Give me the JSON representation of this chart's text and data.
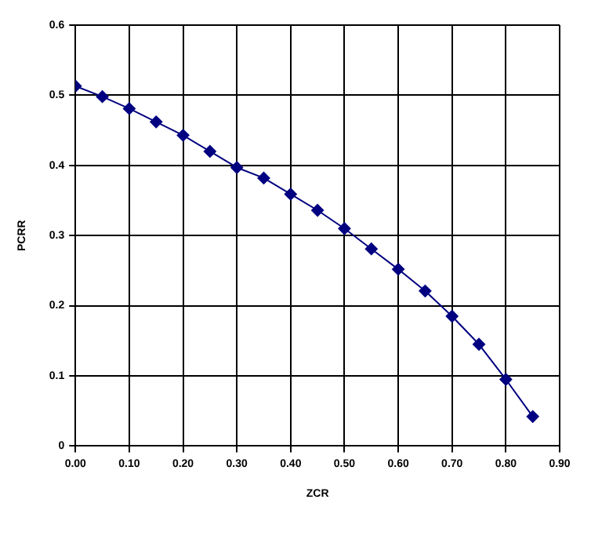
{
  "chart_data": {
    "type": "line",
    "xlabel": "ZCR",
    "ylabel": "PCRR",
    "x": [
      0,
      0.05,
      0.1,
      0.15,
      0.2,
      0.25,
      0.3,
      0.35,
      0.4,
      0.45,
      0.5,
      0.55,
      0.6,
      0.65,
      0.7,
      0.75,
      0.8,
      0.85
    ],
    "series": [
      {
        "color": "#000080",
        "values": [
          0.513,
          0.498,
          0.481,
          0.462,
          0.443,
          0.42,
          0.397,
          0.382,
          0.359,
          0.336,
          0.31,
          0.281,
          0.252,
          0.221,
          0.185,
          0.145,
          0.095,
          0.042
        ]
      }
    ],
    "xlim": [
      0,
      0.9
    ],
    "xticks": [
      {
        "value": 0,
        "label": "0.00"
      },
      {
        "value": 0.1,
        "label": "0.10"
      },
      {
        "value": 0.2,
        "label": "0.20"
      },
      {
        "value": 0.3,
        "label": "0.30"
      },
      {
        "value": 0.4,
        "label": "0.40"
      },
      {
        "value": 0.5,
        "label": "0.50"
      },
      {
        "value": 0.6,
        "label": "0.60"
      },
      {
        "value": 0.7,
        "label": "0.70"
      },
      {
        "value": 0.8,
        "label": "0.80"
      },
      {
        "value": 0.9,
        "label": "0.90"
      }
    ],
    "ylim": [
      0,
      0.6
    ],
    "yticks": [
      0,
      0.1,
      0.2,
      0.3,
      0.4,
      0.5,
      0.6
    ],
    "grid": true,
    "legend": false,
    "marker": "diamond",
    "line_style": "solid"
  }
}
